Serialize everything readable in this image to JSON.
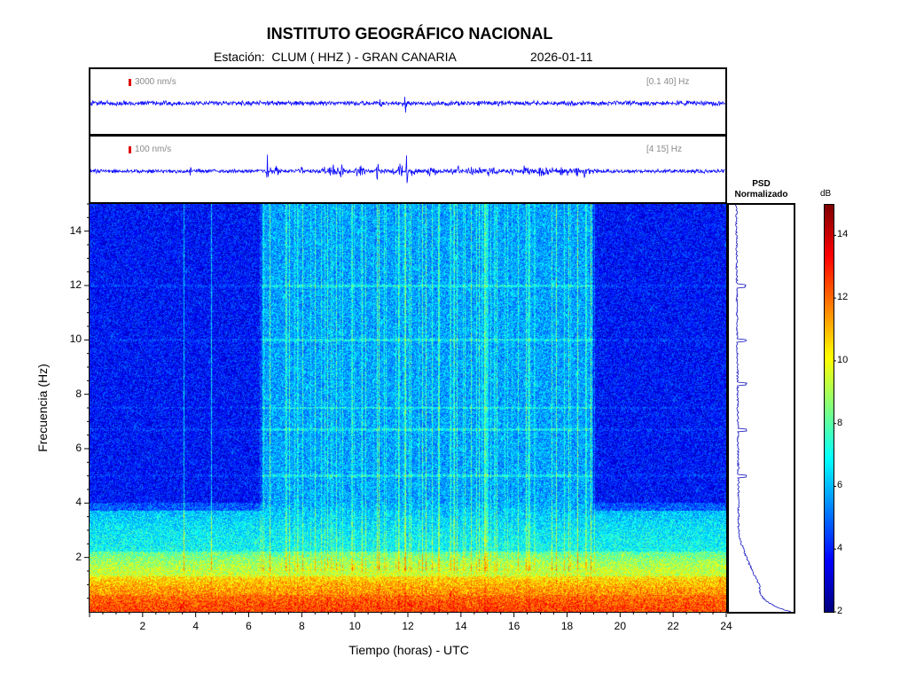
{
  "header": {
    "title": "INSTITUTO GEOGRÁFICO NACIONAL",
    "station_label": "Estación:  CLUM ( HHZ ) - GRAN CANARIA",
    "date": "2026-01-11"
  },
  "trace_top": {
    "scale_label": "3000 nm/s",
    "band_label": "[0.1 40] Hz"
  },
  "trace_bottom": {
    "scale_label": "100 nm/s",
    "band_label": "[4 15] Hz"
  },
  "psd": {
    "title_line1": "PSD",
    "title_line2": "Normalizado"
  },
  "colorbar": {
    "unit": "dB",
    "ticks": [
      "14",
      "12",
      "10",
      "8",
      "6",
      "4",
      "2"
    ],
    "range": [
      2,
      15
    ]
  },
  "chart_data": {
    "type": "heatmap",
    "title": "INSTITUTO GEOGRÁFICO NACIONAL",
    "xlabel": "Tiempo (horas) - UTC",
    "ylabel": "Frecuencia  (Hz)",
    "xlim": [
      0,
      24
    ],
    "ylim": [
      0,
      15
    ],
    "xticks": [
      "2",
      "4",
      "6",
      "8",
      "10",
      "12",
      "14",
      "16",
      "18",
      "20",
      "22",
      "24"
    ],
    "yticks": [
      "14",
      "12",
      "10",
      "8",
      "6",
      "4",
      "2"
    ],
    "colorbar_unit": "dB",
    "colorbar_range": [
      2,
      15
    ],
    "bands_db": [
      {
        "freq_range_hz": [
          0,
          0.6
        ],
        "level_db": 12.5
      },
      {
        "freq_range_hz": [
          0.6,
          1.3
        ],
        "level_db": 11.5
      },
      {
        "freq_range_hz": [
          1.3,
          2.2
        ],
        "level_db": 9.5
      },
      {
        "freq_range_hz": [
          2.2,
          4
        ],
        "level_db": 7
      },
      {
        "freq_range_hz": [
          4,
          15
        ],
        "level_db": 5
      }
    ],
    "quiet_periods_hours": [
      [
        0,
        6.5
      ],
      [
        19,
        24
      ]
    ],
    "spectral_lines_hz": [
      5,
      6.7,
      7.5,
      10,
      12
    ],
    "psd_peaks_hz": [
      5,
      6.7,
      8.4,
      10,
      12
    ]
  }
}
